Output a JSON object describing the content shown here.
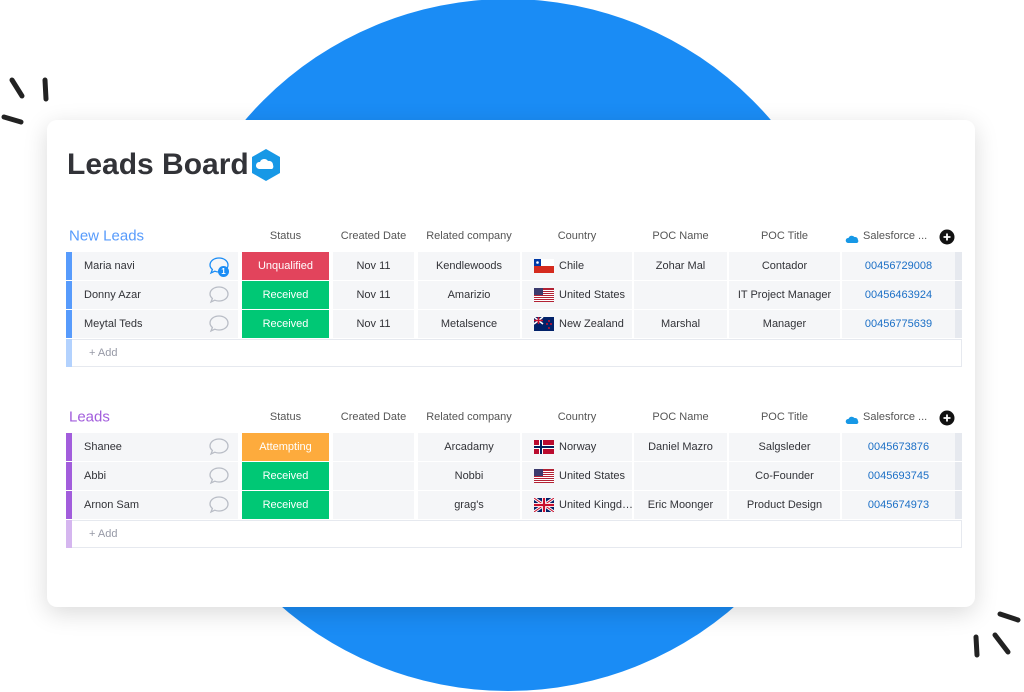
{
  "header": {
    "title": "Leads Board"
  },
  "groups": [
    {
      "title": "New Leads",
      "color": "#579bfc",
      "add_label": "+ Add",
      "columns": [
        "Status",
        "Created Date",
        "Related company",
        "Country",
        "POC Name",
        "POC Title",
        "Salesforce ..."
      ],
      "rows": [
        {
          "name": "Maria navi",
          "updates": 1,
          "status": "Unqualified",
          "status_color": "#e2445c",
          "date": "Nov 11",
          "company": "Kendlewoods",
          "country": "Chile",
          "poc_name": "Zohar Mal",
          "poc_title": "Contador",
          "salesforce": "00456729008"
        },
        {
          "name": "Donny Azar",
          "status": "Received",
          "status_color": "#00c875",
          "date": "Nov 11",
          "company": "Amarizio",
          "country": "United States",
          "poc_title": "IT Project Manager",
          "salesforce": "00456463924"
        },
        {
          "name": "Meytal Teds",
          "status": "Received",
          "status_color": "#00c875",
          "date": "Nov 11",
          "company": "Metalsence",
          "country": "New Zealand",
          "poc_name": "Marshal",
          "poc_title": "Manager",
          "salesforce": "00456775639"
        }
      ]
    },
    {
      "title": "Leads",
      "color": "#a25ddc",
      "add_label": "+ Add",
      "columns": [
        "Status",
        "Created Date",
        "Related company",
        "Country",
        "POC Name",
        "POC Title",
        "Salesforce ..."
      ],
      "rows": [
        {
          "name": "Shanee",
          "status": "Attempting",
          "status_color": "#fdab3d",
          "company": "Arcadamy",
          "country": "Norway",
          "poc_name": "Daniel Mazro",
          "poc_title": "Salgsleder",
          "salesforce": "0045673876"
        },
        {
          "name": "Abbi",
          "status": "Received",
          "status_color": "#00c875",
          "company": "Nobbi",
          "country": "United States",
          "poc_title": "Co-Founder",
          "salesforce": "0045693745"
        },
        {
          "name": "Arnon Sam",
          "status": "Received",
          "status_color": "#00c875",
          "company": "grag's",
          "country": "United Kingd…",
          "poc_name": "Eric Moonger",
          "poc_title": "Product Design",
          "salesforce": "0045674973"
        }
      ]
    }
  ]
}
